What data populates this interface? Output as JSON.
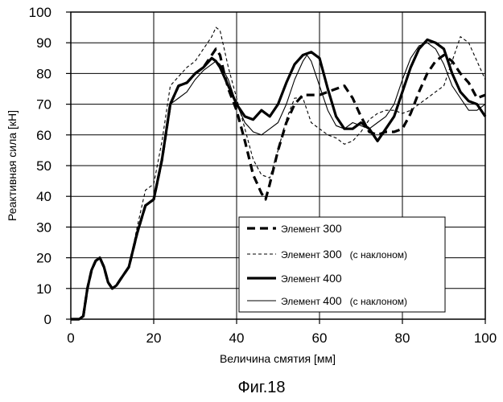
{
  "chart_data": {
    "type": "line",
    "title": "",
    "xlabel": "Величина смятия [мм]",
    "ylabel": "Реактивная сила [кН]",
    "xlim": [
      0,
      100
    ],
    "ylim": [
      0,
      100
    ],
    "xticks": [
      0,
      20,
      40,
      60,
      80,
      100
    ],
    "yticks": [
      0,
      10,
      20,
      30,
      40,
      50,
      60,
      70,
      80,
      90,
      100
    ],
    "grid": "horizontal and vertical",
    "legend_position": "bottom-right",
    "caption": "Фиг.18",
    "series": [
      {
        "name": "Элемент",
        "name_number": "300",
        "name_suffix": "",
        "style": "thick-dashed",
        "x": [
          0,
          2,
          3,
          4,
          5,
          6,
          7,
          8,
          9,
          10,
          11,
          12,
          14,
          16,
          18,
          20,
          22,
          24,
          26,
          28,
          30,
          32,
          34,
          35,
          36,
          37,
          38,
          40,
          42,
          44,
          45,
          46,
          47,
          48,
          50,
          52,
          54,
          56,
          58,
          60,
          62,
          64,
          66,
          68,
          70,
          72,
          74,
          76,
          78,
          80,
          82,
          84,
          86,
          88,
          90,
          92,
          94,
          96,
          98,
          100
        ],
        "y": [
          0,
          0,
          1,
          10,
          16,
          19,
          20,
          17,
          12,
          10,
          11,
          13,
          17,
          28,
          37,
          39,
          52,
          70,
          76,
          77,
          80,
          82,
          86,
          88,
          86,
          80,
          75,
          68,
          58,
          47,
          44,
          41,
          39,
          44,
          55,
          64,
          70,
          73,
          73,
          73,
          74,
          75,
          76,
          72,
          66,
          61,
          60,
          61,
          61,
          62,
          67,
          74,
          80,
          84,
          86,
          84,
          80,
          77,
          72,
          73
        ]
      },
      {
        "name": "Элемент",
        "name_number": "300",
        "name_suffix": "(с наклоном)",
        "style": "thin-dashed",
        "x": [
          0,
          2,
          3,
          4,
          5,
          6,
          7,
          8,
          9,
          10,
          11,
          12,
          14,
          16,
          18,
          20,
          22,
          24,
          26,
          28,
          30,
          32,
          34,
          35,
          36,
          37,
          38,
          40,
          42,
          44,
          46,
          48,
          50,
          52,
          54,
          56,
          58,
          60,
          62,
          64,
          66,
          68,
          70,
          72,
          74,
          76,
          78,
          80,
          82,
          84,
          86,
          88,
          90,
          92,
          94,
          96,
          98,
          100
        ],
        "y": [
          0,
          0,
          1,
          10,
          16,
          19,
          20,
          17,
          12,
          10,
          11,
          13,
          17,
          30,
          42,
          44,
          58,
          76,
          79,
          82,
          84,
          88,
          92,
          95,
          94,
          88,
          82,
          72,
          62,
          52,
          47,
          46,
          55,
          65,
          72,
          72,
          64,
          62,
          60,
          59,
          57,
          58,
          61,
          65,
          67,
          68,
          68,
          67,
          68,
          70,
          72,
          74,
          76,
          84,
          92,
          90,
          84,
          78
        ]
      },
      {
        "name": "Элемент",
        "name_number": "400",
        "name_suffix": "",
        "style": "thick-solid",
        "x": [
          0,
          2,
          3,
          4,
          5,
          6,
          7,
          8,
          9,
          10,
          11,
          12,
          14,
          16,
          18,
          20,
          22,
          24,
          26,
          28,
          30,
          32,
          34,
          35,
          36,
          38,
          40,
          42,
          44,
          46,
          48,
          50,
          52,
          54,
          56,
          58,
          60,
          62,
          64,
          66,
          68,
          70,
          72,
          74,
          76,
          78,
          80,
          82,
          84,
          86,
          88,
          90,
          92,
          94,
          96,
          98,
          100
        ],
        "y": [
          0,
          0,
          1,
          10,
          16,
          19,
          20,
          17,
          12,
          10,
          11,
          13,
          17,
          28,
          37,
          39,
          52,
          70,
          76,
          77,
          80,
          82,
          85,
          84,
          82,
          76,
          70,
          66,
          65,
          68,
          66,
          70,
          77,
          83,
          86,
          87,
          85,
          75,
          66,
          62,
          62,
          64,
          62,
          58,
          62,
          66,
          74,
          82,
          88,
          91,
          90,
          88,
          80,
          74,
          71,
          70,
          66
        ]
      },
      {
        "name": "Элемент",
        "name_number": "400",
        "name_suffix": "(с наклоном)",
        "style": "thin-solid",
        "x": [
          0,
          2,
          3,
          4,
          5,
          6,
          7,
          8,
          9,
          10,
          11,
          12,
          14,
          16,
          18,
          20,
          22,
          24,
          26,
          28,
          30,
          32,
          34,
          35,
          36,
          38,
          40,
          42,
          44,
          46,
          48,
          50,
          52,
          54,
          56,
          57,
          58,
          60,
          62,
          64,
          66,
          68,
          70,
          72,
          74,
          76,
          78,
          80,
          82,
          84,
          86,
          88,
          90,
          92,
          94,
          96,
          98,
          100
        ],
        "y": [
          0,
          0,
          1,
          10,
          16,
          19,
          20,
          17,
          12,
          10,
          11,
          13,
          17,
          28,
          37,
          39,
          52,
          70,
          72,
          74,
          78,
          81,
          83,
          84,
          83,
          78,
          70,
          64,
          61,
          60,
          62,
          64,
          70,
          78,
          84,
          86,
          84,
          76,
          68,
          63,
          62,
          64,
          63,
          62,
          64,
          66,
          70,
          78,
          85,
          89,
          90,
          88,
          83,
          76,
          72,
          68,
          68,
          70
        ]
      }
    ]
  }
}
